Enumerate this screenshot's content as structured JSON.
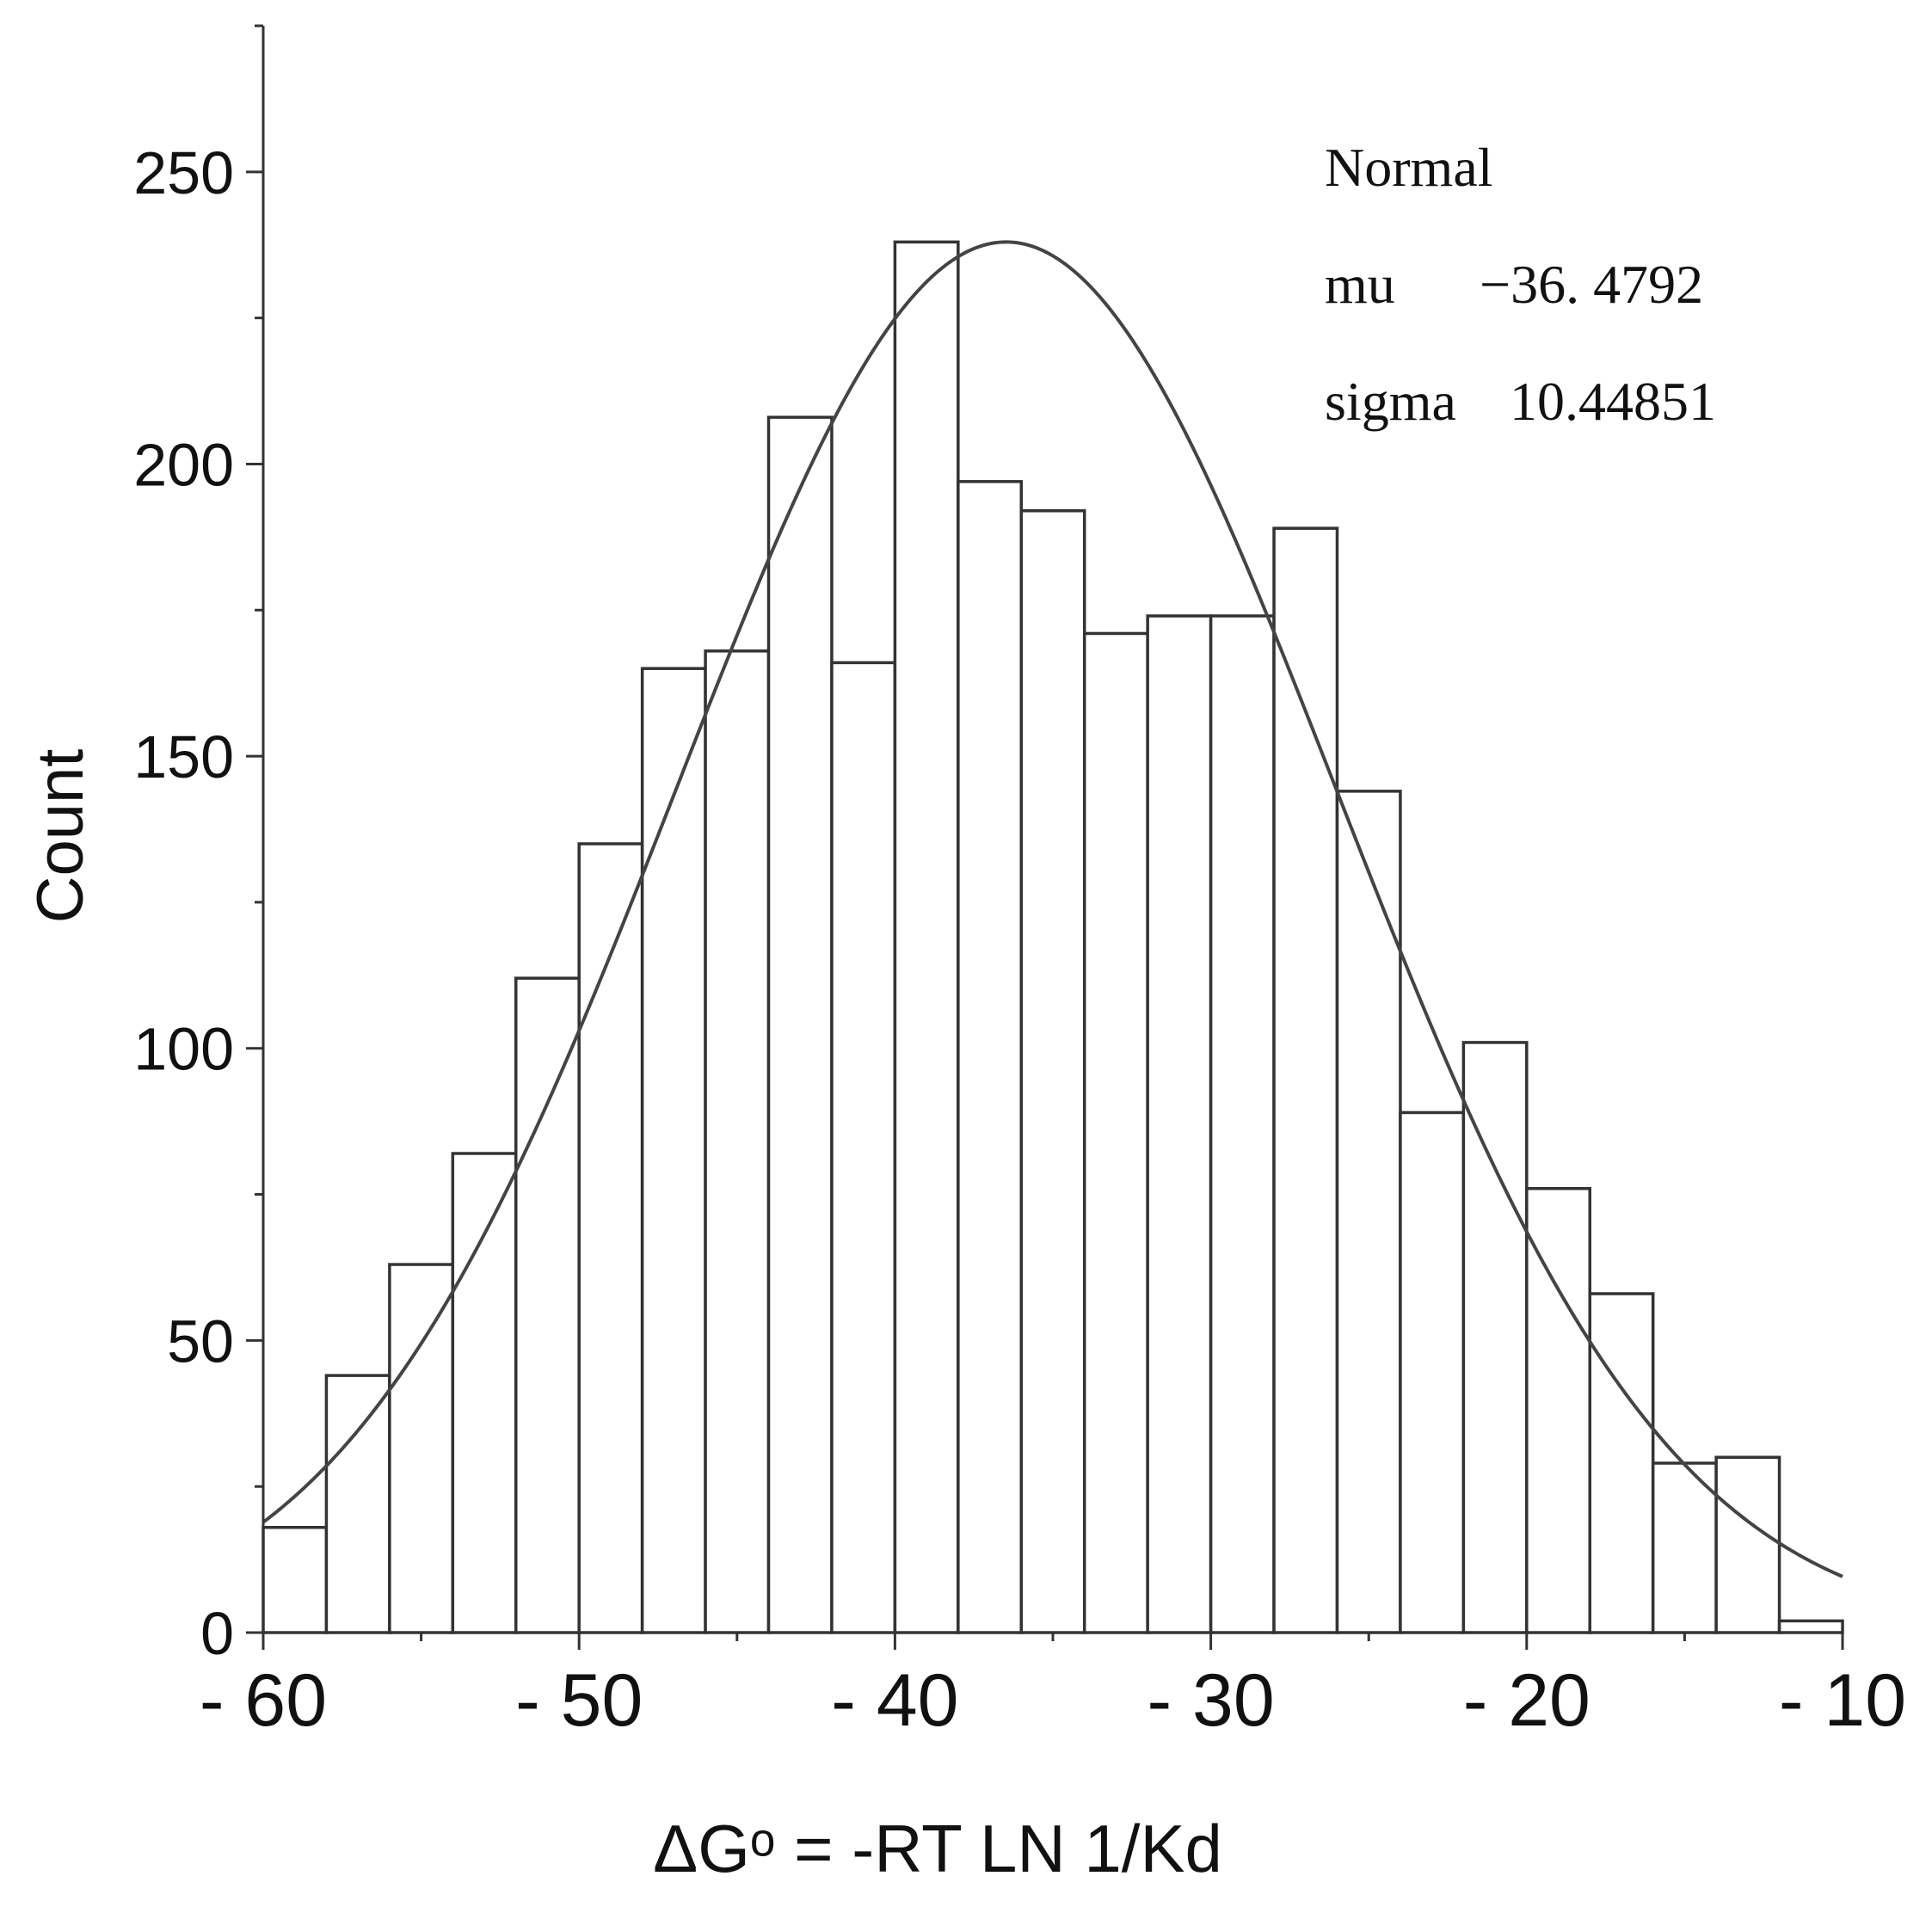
{
  "chart_data": {
    "type": "bar",
    "title": "",
    "xlabel": "ΔGᵒ = -RT LN 1/Kd",
    "ylabel": "Count",
    "xlim": [
      -60,
      -10
    ],
    "ylim": [
      0,
      275
    ],
    "x_ticks": [
      -60,
      -50,
      -40,
      -30,
      -20,
      -10
    ],
    "x_tick_labels": [
      "- 60",
      "- 50",
      "- 40",
      "- 30",
      "- 20",
      "- 10"
    ],
    "y_ticks": [
      0,
      50,
      100,
      150,
      200,
      250
    ],
    "y_tick_labels": [
      "0",
      "50",
      "100",
      "150",
      "200",
      "250"
    ],
    "bin_width": 2,
    "bins": [
      {
        "x0": -60,
        "x1": -58,
        "value": 18
      },
      {
        "x0": -58,
        "x1": -56,
        "value": 44
      },
      {
        "x0": -56,
        "x1": -54,
        "value": 63
      },
      {
        "x0": -54,
        "x1": -52,
        "value": 82
      },
      {
        "x0": -52,
        "x1": -50,
        "value": 112
      },
      {
        "x0": -50,
        "x1": -48,
        "value": 135
      },
      {
        "x0": -48,
        "x1": -46,
        "value": 165
      },
      {
        "x0": -46,
        "x1": -44,
        "value": 168
      },
      {
        "x0": -44,
        "x1": -42,
        "value": 208
      },
      {
        "x0": -42,
        "x1": -40,
        "value": 166
      },
      {
        "x0": -40,
        "x1": -38,
        "value": 238
      },
      {
        "x0": -38,
        "x1": -36,
        "value": 197
      },
      {
        "x0": -36,
        "x1": -34,
        "value": 192
      },
      {
        "x0": -34,
        "x1": -32,
        "value": 171
      },
      {
        "x0": -32,
        "x1": -30,
        "value": 174
      },
      {
        "x0": -30,
        "x1": -28,
        "value": 174
      },
      {
        "x0": -28,
        "x1": -26,
        "value": 189
      },
      {
        "x0": -26,
        "x1": -24,
        "value": 144
      },
      {
        "x0": -24,
        "x1": -22,
        "value": 89
      },
      {
        "x0": -22,
        "x1": -20,
        "value": 101
      },
      {
        "x0": -20,
        "x1": -18,
        "value": 76
      },
      {
        "x0": -18,
        "x1": -16,
        "value": 58
      },
      {
        "x0": -16,
        "x1": -14,
        "value": 29
      },
      {
        "x0": -14,
        "x1": -12,
        "value": 30
      },
      {
        "x0": -12,
        "x1": -10,
        "value": 2
      }
    ],
    "fit": {
      "distribution": "Normal",
      "mu": -36.4792,
      "sigma": 10.44851,
      "peak_count": 238
    }
  },
  "annotation": {
    "title": "Normal",
    "mu_label": "mu",
    "mu_value": "−36. 4792",
    "sigma_label": "sigma",
    "sigma_value": "10.44851"
  },
  "colors": {
    "bar_fill": "#ffffff",
    "bar_stroke": "#333333",
    "curve": "#444444",
    "axis": "#333333"
  }
}
